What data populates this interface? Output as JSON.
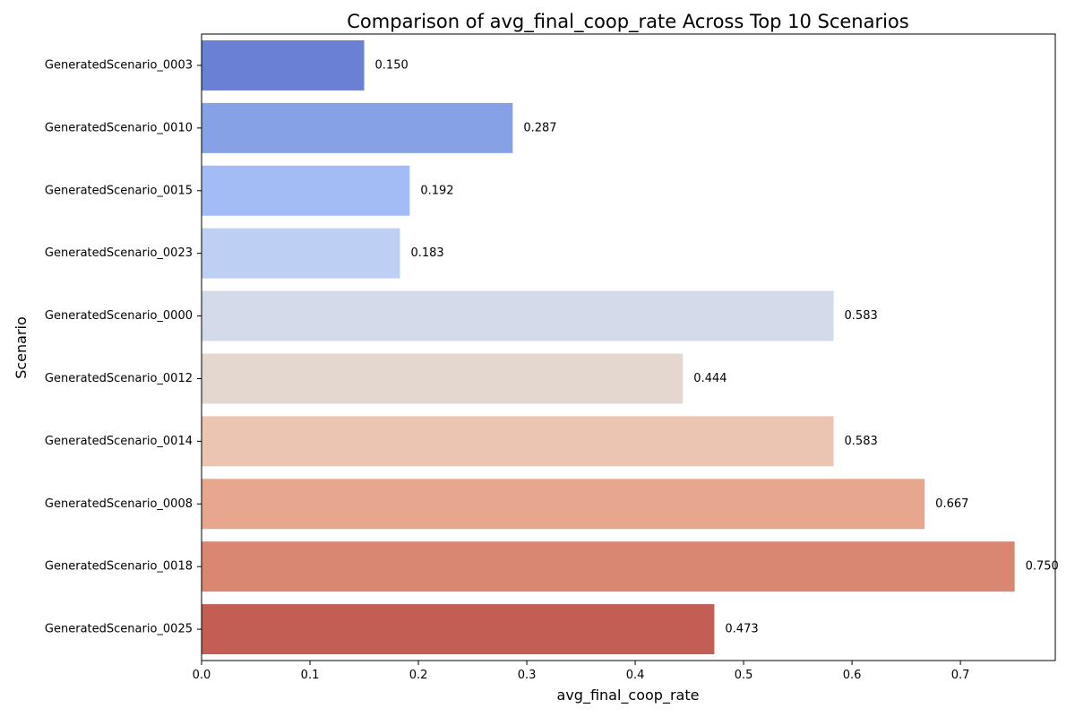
{
  "chart_data": {
    "type": "bar",
    "orientation": "horizontal",
    "title": "Comparison of avg_final_coop_rate Across Top 10 Scenarios",
    "xlabel": "avg_final_coop_rate",
    "ylabel": "Scenario",
    "categories": [
      "GeneratedScenario_0003",
      "GeneratedScenario_0010",
      "GeneratedScenario_0015",
      "GeneratedScenario_0023",
      "GeneratedScenario_0000",
      "GeneratedScenario_0012",
      "GeneratedScenario_0014",
      "GeneratedScenario_0008",
      "GeneratedScenario_0018",
      "GeneratedScenario_0025"
    ],
    "values": [
      0.15,
      0.287,
      0.192,
      0.183,
      0.583,
      0.444,
      0.583,
      0.667,
      0.75,
      0.473
    ],
    "data_labels": [
      "0.150",
      "0.287",
      "0.192",
      "0.183",
      "0.583",
      "0.444",
      "0.583",
      "0.667",
      "0.750",
      "0.473"
    ],
    "colors": [
      "#6a80d4",
      "#86a1e6",
      "#a3bcf5",
      "#bdd0f3",
      "#d3daea",
      "#e4d7cf",
      "#ebc4b2",
      "#e7a78f",
      "#d98672",
      "#c25e54"
    ],
    "xlim": [
      0,
      0.7875
    ],
    "xticks": [
      0.0,
      0.1,
      0.2,
      0.3,
      0.4,
      0.5,
      0.6,
      0.7
    ],
    "xtick_labels": [
      "0.0",
      "0.1",
      "0.2",
      "0.3",
      "0.4",
      "0.5",
      "0.6",
      "0.7"
    ],
    "grid": false,
    "legend": "none"
  }
}
